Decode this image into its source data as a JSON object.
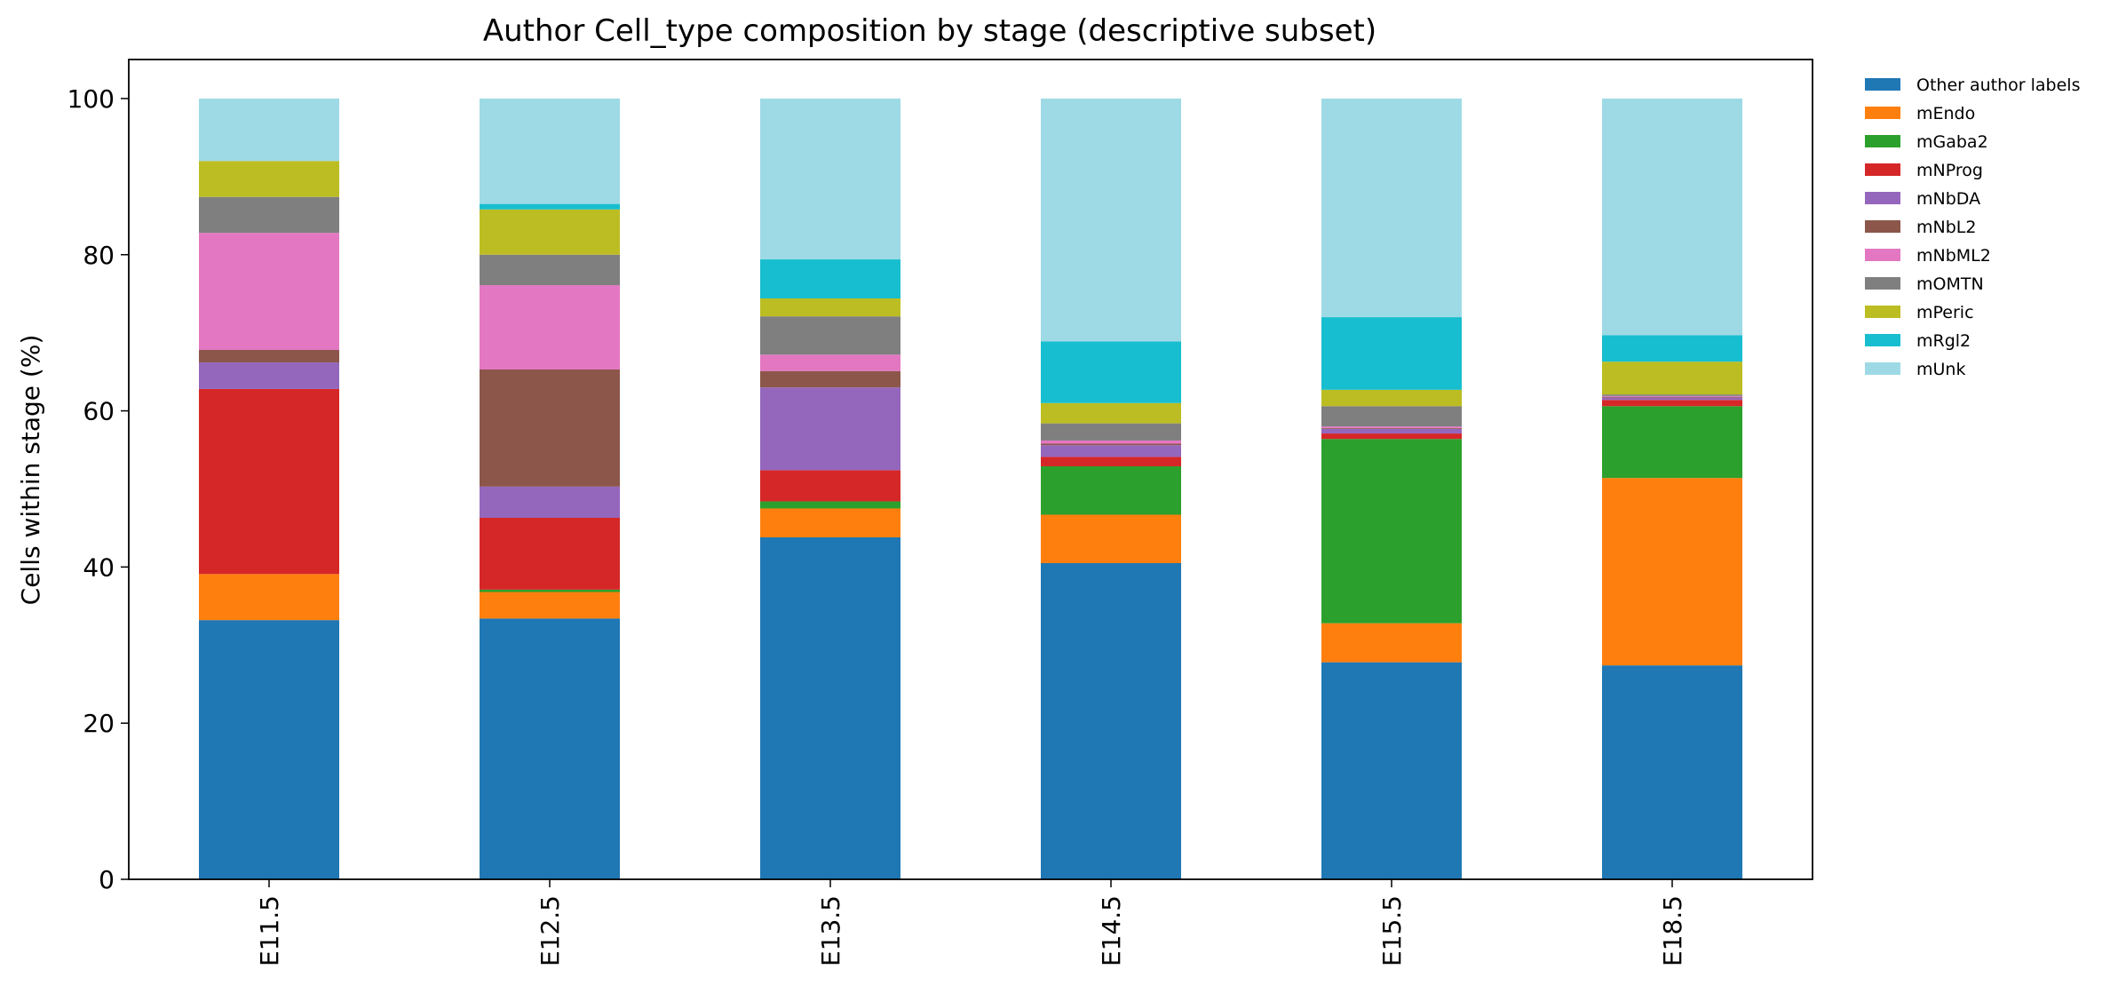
{
  "chart_data": {
    "type": "bar",
    "stacked": true,
    "title": "Author Cell_type composition by stage (descriptive subset)",
    "xlabel": "",
    "ylabel": "Cells within stage (%)",
    "ylim": [
      0,
      105
    ],
    "yticks": [
      0,
      20,
      40,
      60,
      80,
      100
    ],
    "grid": false,
    "legend_position": "outside right, top",
    "categories": [
      "E11.5",
      "E12.5",
      "E13.5",
      "E14.5",
      "E15.5",
      "E18.5"
    ],
    "series": [
      {
        "name": "Other author labels",
        "color": "#1f77b4",
        "values": [
          33.2,
          33.4,
          43.8,
          40.5,
          27.8,
          27.4
        ]
      },
      {
        "name": "mEndo",
        "color": "#ff7f0e",
        "values": [
          5.9,
          3.4,
          3.7,
          6.2,
          5.0,
          24.0
        ]
      },
      {
        "name": "mGaba2",
        "color": "#2ca02c",
        "values": [
          0.0,
          0.3,
          0.9,
          6.2,
          23.6,
          9.2
        ]
      },
      {
        "name": "mNProg",
        "color": "#d62728",
        "values": [
          23.7,
          9.2,
          4.0,
          1.2,
          0.7,
          0.8
        ]
      },
      {
        "name": "mNbDA",
        "color": "#9467bd",
        "values": [
          3.4,
          4.0,
          10.6,
          1.5,
          0.6,
          0.3
        ]
      },
      {
        "name": "mNbL2",
        "color": "#8c564b",
        "values": [
          1.6,
          15.0,
          2.1,
          0.2,
          0.1,
          0.1
        ]
      },
      {
        "name": "mNbML2",
        "color": "#e377c2",
        "values": [
          15.0,
          10.8,
          2.1,
          0.4,
          0.2,
          0.1
        ]
      },
      {
        "name": "mOMTN",
        "color": "#7f7f7f",
        "values": [
          4.6,
          3.9,
          4.9,
          2.2,
          2.6,
          0.2
        ]
      },
      {
        "name": "mPeric",
        "color": "#bcbd22",
        "values": [
          4.6,
          5.8,
          2.3,
          2.6,
          2.1,
          4.2
        ]
      },
      {
        "name": "mRgl2",
        "color": "#17becf",
        "values": [
          0.0,
          0.7,
          5.0,
          7.9,
          9.3,
          3.4
        ]
      },
      {
        "name": "mUnk",
        "color": "#9edae5",
        "values": [
          8.0,
          13.5,
          20.6,
          31.1,
          28.0,
          30.3
        ]
      }
    ]
  }
}
